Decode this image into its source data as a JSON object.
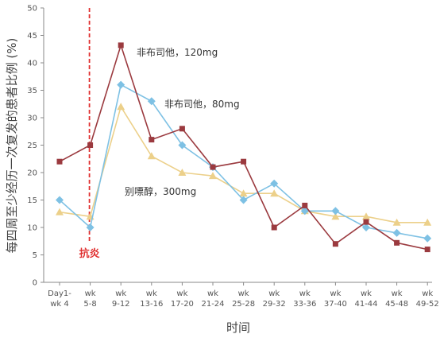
{
  "chart_data": {
    "type": "line",
    "title": "",
    "xlabel": "时间",
    "ylabel": "每四周至少经历一次复发的患者比例 (%)",
    "ylim": [
      0,
      50
    ],
    "yticks": [
      0,
      5,
      10,
      15,
      20,
      25,
      30,
      35,
      40,
      45,
      50
    ],
    "categories": [
      [
        "Day1-",
        "wk 4"
      ],
      [
        "wk",
        "5-8"
      ],
      [
        "wk",
        "9-12"
      ],
      [
        "wk",
        "13-16"
      ],
      [
        "wk",
        "17-20"
      ],
      [
        "wk",
        "21-24"
      ],
      [
        "wk",
        "25-28"
      ],
      [
        "wk",
        "29-32"
      ],
      [
        "wk",
        "33-36"
      ],
      [
        "wk",
        "37-40"
      ],
      [
        "wk",
        "41-44"
      ],
      [
        "wk",
        "45-48"
      ],
      [
        "wk",
        "49-52"
      ]
    ],
    "grid": false,
    "legend": "none",
    "series": [
      {
        "name": "非布司他，120mg",
        "color": "#9b3a3f",
        "marker": "square",
        "values": [
          22,
          25,
          43.2,
          26,
          28,
          21,
          22,
          10,
          14,
          7,
          11,
          7.2,
          6
        ]
      },
      {
        "name": "非布司他，80mg",
        "color": "#7ec1e4",
        "marker": "diamond",
        "values": [
          15,
          10,
          36,
          33,
          25,
          21,
          15,
          18,
          13,
          13,
          10,
          9,
          8
        ]
      },
      {
        "name": "别嘌醇，300mg",
        "color": "#ecd08a",
        "marker": "triangle",
        "values": [
          12.8,
          12,
          32,
          23,
          20,
          19.4,
          16.2,
          16.2,
          13,
          12,
          12,
          10.9,
          10.9
        ]
      }
    ],
    "event": {
      "label": "抗炎",
      "after_category_index": 1,
      "color": "#e03030"
    }
  }
}
